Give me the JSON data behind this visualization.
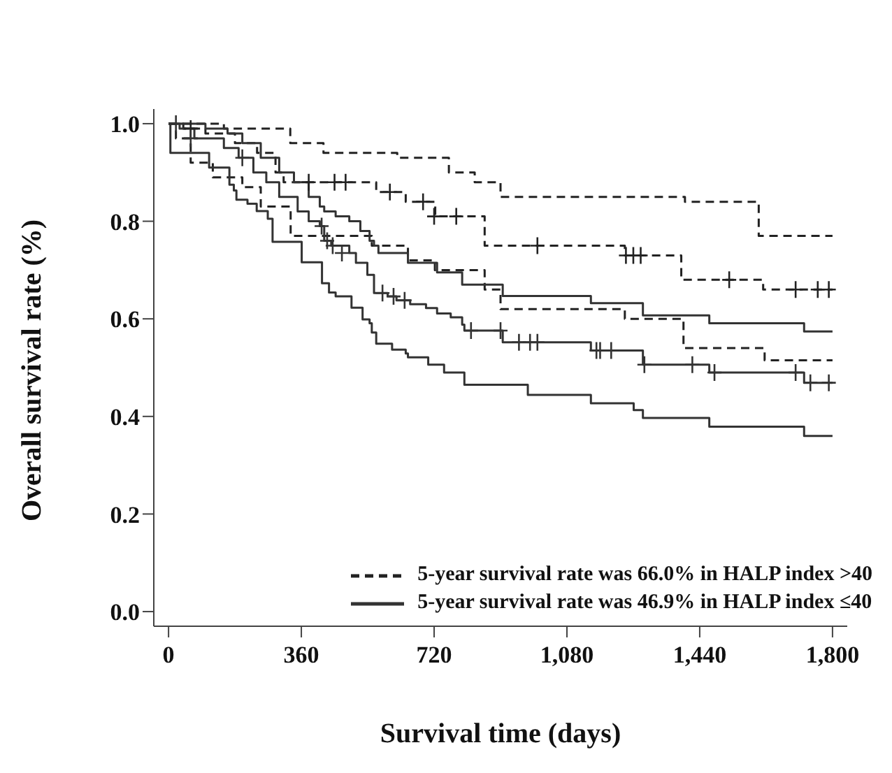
{
  "chart_data": {
    "type": "step",
    "xlabel": "Survival time (days)",
    "ylabel": "Overall survival rate  (%)",
    "xlim": [
      -40,
      1840
    ],
    "xticks": [
      0,
      360,
      720,
      {
        "value": 1080,
        "label": "1,080"
      },
      {
        "value": 1440,
        "label": "1,440"
      },
      {
        "value": 1800,
        "label": "1,800"
      }
    ],
    "ylim": [
      -0.03,
      1.03
    ],
    "yticks": [
      {
        "value": 0,
        "label": "0.0"
      },
      0.2,
      0.4,
      0.6,
      0.8,
      {
        "value": 1,
        "label": "1.0"
      }
    ],
    "grid": false,
    "legend": "bottom right",
    "series": [
      {
        "type": "step",
        "color": "#222222",
        "line_style": "dashed",
        "x": [
          0,
          150,
          330,
          420,
          620,
          760,
          830,
          900,
          1400,
          1600,
          1800
        ],
        "values": [
          1.0,
          0.99,
          0.96,
          0.94,
          0.93,
          0.9,
          0.88,
          0.85,
          0.84,
          0.77,
          0.77
        ]
      },
      {
        "type": "step",
        "name": "5-year survival rate was 66.0% in HALP index >40",
        "color": "#222222",
        "line_style": "dashed",
        "x": [
          0,
          40,
          100,
          180,
          240,
          290,
          312,
          563,
          643,
          723,
          857,
          1237,
          1390,
          1612,
          1800
        ],
        "values": [
          1.0,
          0.99,
          0.98,
          0.96,
          0.94,
          0.9,
          0.88,
          0.86,
          0.84,
          0.81,
          0.75,
          0.73,
          0.68,
          0.66,
          0.66
        ]
      },
      {
        "type": "step",
        "color": "#222222",
        "line_style": "dashed",
        "x": [
          0,
          20,
          60,
          120,
          200,
          250,
          331,
          551,
          649,
          722,
          857,
          900,
          1237,
          1396,
          1616,
          1800
        ],
        "values": [
          1.0,
          0.97,
          0.92,
          0.89,
          0.87,
          0.83,
          0.77,
          0.75,
          0.72,
          0.7,
          0.66,
          0.62,
          0.6,
          0.54,
          0.515,
          0.515
        ]
      },
      {
        "type": "step",
        "color": "#333333",
        "line_style": "solid",
        "x": [
          0,
          60,
          100,
          160,
          200,
          250,
          300,
          340,
          380,
          410,
          422,
          453,
          490,
          520,
          545,
          557,
          569,
          649,
          728,
          796,
          906,
          1145,
          1286,
          1466,
          1723,
          1800
        ],
        "values": [
          1.0,
          1.0,
          0.99,
          0.98,
          0.96,
          0.93,
          0.9,
          0.88,
          0.85,
          0.83,
          0.82,
          0.81,
          0.8,
          0.78,
          0.76,
          0.75,
          0.735,
          0.715,
          0.695,
          0.67,
          0.647,
          0.632,
          0.607,
          0.591,
          0.574,
          0.574
        ]
      },
      {
        "type": "step",
        "name": "5-year survival rate was 46.9% in HALP index ≤40",
        "color": "#333333",
        "line_style": "solid",
        "x": [
          0,
          30,
          70,
          150,
          190,
          230,
          265,
          300,
          350,
          380,
          410,
          422,
          441,
          490,
          508,
          539,
          557,
          594,
          618,
          655,
          698,
          728,
          765,
          796,
          802,
          906,
          1145,
          1286,
          1466,
          1723,
          1800
        ],
        "values": [
          1.0,
          0.99,
          0.97,
          0.95,
          0.93,
          0.9,
          0.88,
          0.85,
          0.82,
          0.8,
          0.79,
          0.76,
          0.75,
          0.735,
          0.715,
          0.69,
          0.653,
          0.646,
          0.638,
          0.63,
          0.622,
          0.611,
          0.603,
          0.588,
          0.576,
          0.552,
          0.535,
          0.506,
          0.49,
          0.469,
          0.469
        ]
      },
      {
        "type": "step",
        "color": "#333333",
        "line_style": "solid",
        "x": [
          0,
          5,
          110,
          165,
          177,
          184,
          214,
          239,
          269,
          282,
          361,
          416,
          435,
          453,
          496,
          526,
          545,
          551,
          563,
          606,
          643,
          649,
          704,
          747,
          802,
          974,
          1145,
          1261,
          1286,
          1466,
          1723,
          1800
        ],
        "values": [
          1.0,
          0.94,
          0.91,
          0.875,
          0.863,
          0.844,
          0.836,
          0.821,
          0.805,
          0.758,
          0.716,
          0.673,
          0.654,
          0.646,
          0.623,
          0.599,
          0.591,
          0.572,
          0.549,
          0.537,
          0.529,
          0.521,
          0.506,
          0.49,
          0.465,
          0.444,
          0.427,
          0.413,
          0.397,
          0.379,
          0.36,
          0.36
        ]
      },
      {
        "type": "scatter",
        "marker": "cross",
        "color": "#222222",
        "x": [
          60,
          380,
          450,
          480,
          600,
          690,
          720,
          780,
          1000,
          1240,
          1260,
          1280,
          1520,
          1700,
          1760,
          1790
        ],
        "values": [
          0.99,
          0.88,
          0.88,
          0.88,
          0.86,
          0.84,
          0.81,
          0.81,
          0.75,
          0.73,
          0.73,
          0.73,
          0.68,
          0.66,
          0.66,
          0.66
        ]
      },
      {
        "type": "scatter",
        "marker": "cross",
        "color": "#333333",
        "x": [
          20,
          60,
          200,
          415,
          430,
          445,
          470,
          580,
          610,
          640,
          820,
          900,
          950,
          980,
          1000,
          1160,
          1170,
          1200,
          1290,
          1420,
          1480,
          1700,
          1740,
          1790
        ],
        "values": [
          1.0,
          0.97,
          0.93,
          0.79,
          0.76,
          0.75,
          0.735,
          0.653,
          0.646,
          0.638,
          0.576,
          0.576,
          0.552,
          0.552,
          0.552,
          0.535,
          0.535,
          0.535,
          0.506,
          0.506,
          0.49,
          0.49,
          0.469,
          0.469
        ]
      }
    ]
  }
}
